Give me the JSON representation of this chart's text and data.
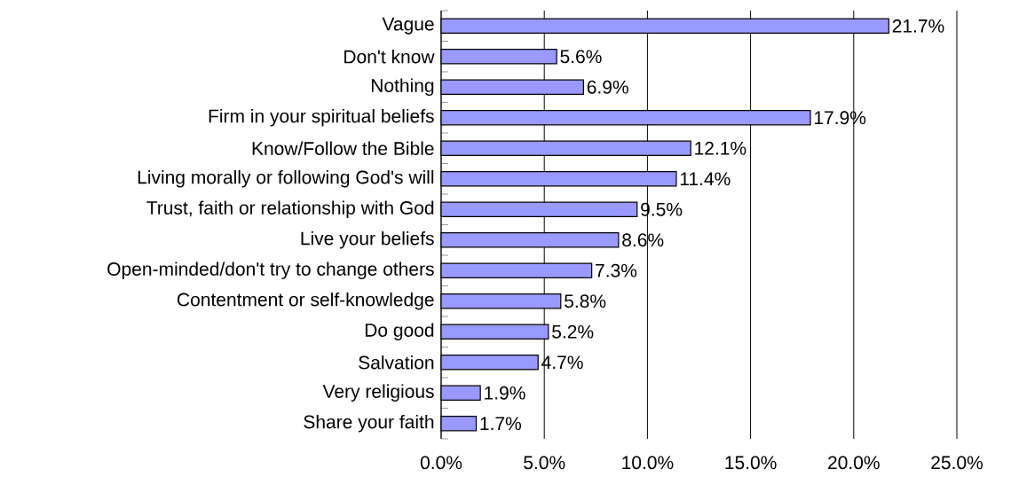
{
  "chart_data": {
    "type": "bar",
    "orientation": "horizontal",
    "categories": [
      "Vague",
      "Don't know",
      "Nothing",
      "Firm in your spiritual beliefs",
      "Know/Follow the Bible",
      "Living morally or following God's will",
      "Trust, faith or relationship with God",
      "Live your beliefs",
      "Open-minded/don't try to change others",
      "Contentment or self-knowledge",
      "Do good",
      "Salvation",
      "Very religious",
      "Share your faith"
    ],
    "values": [
      21.7,
      5.6,
      6.9,
      17.9,
      12.1,
      11.4,
      9.5,
      8.6,
      7.3,
      5.8,
      5.2,
      4.7,
      1.9,
      1.7
    ],
    "value_labels": [
      "21.7%",
      "5.6%",
      "6.9%",
      "17.9%",
      "12.1%",
      "11.4%",
      "9.5%",
      "8.6%",
      "7.3%",
      "5.8%",
      "5.2%",
      "4.7%",
      "1.9%",
      "1.7%"
    ],
    "color": "#9999ff",
    "xlim": [
      0,
      25
    ],
    "xticks": [
      {
        "value": 0,
        "label": "0.0%"
      },
      {
        "value": 5,
        "label": "5.0%"
      },
      {
        "value": 10,
        "label": "10.0%"
      },
      {
        "value": 15,
        "label": "15.0%"
      },
      {
        "value": 20,
        "label": "20.0%"
      },
      {
        "value": 25,
        "label": "25.0%"
      }
    ],
    "grid": "x"
  }
}
